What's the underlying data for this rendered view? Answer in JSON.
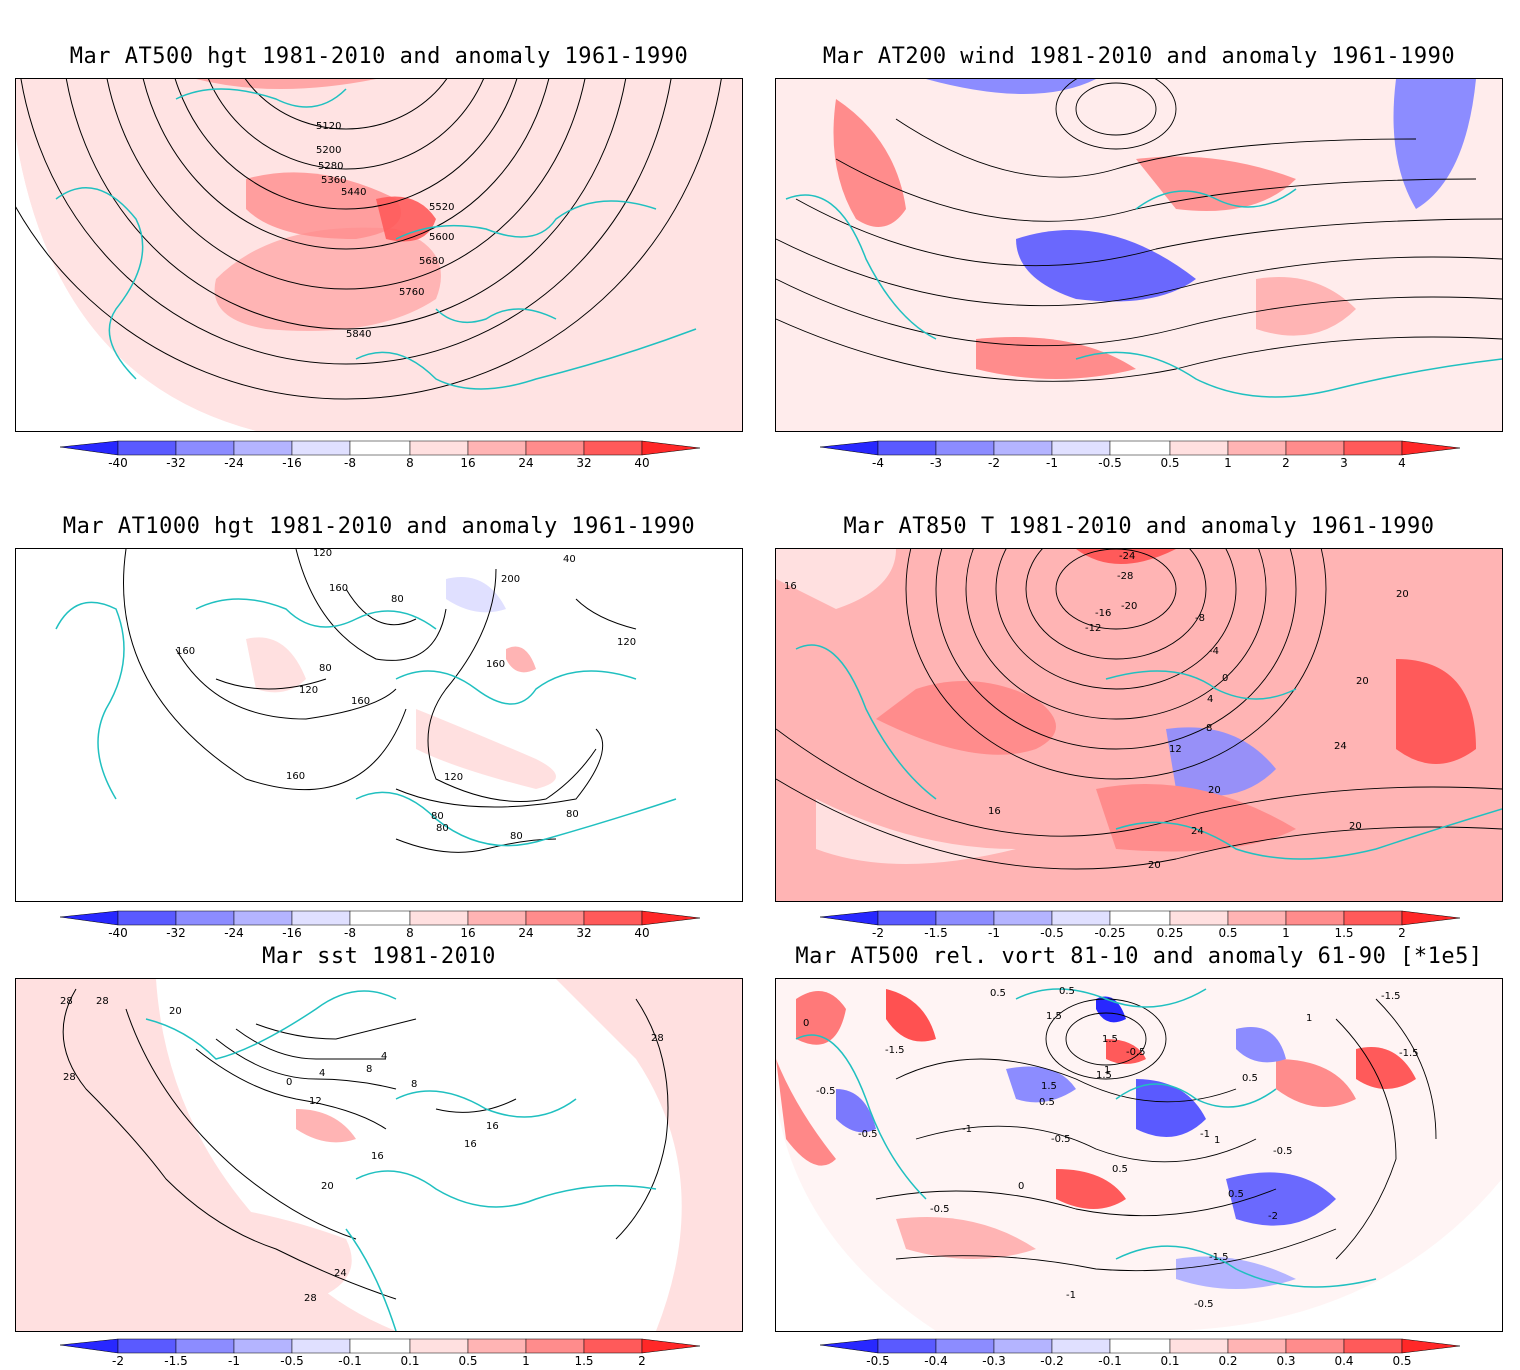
{
  "panels": [
    {
      "id": "p1",
      "title": "Mar AT500 hgt 1981-2010 and anomaly 1961-1990",
      "contour_labels": [
        "5120",
        "5200",
        "5280",
        "5360",
        "5440",
        "5520",
        "5600",
        "5680",
        "5760",
        "5840"
      ],
      "colorbar_ticks": [
        "-40",
        "-32",
        "-24",
        "-16",
        "-8",
        "8",
        "16",
        "24",
        "32",
        "40"
      ]
    },
    {
      "id": "p2",
      "title": "Mar AT200 wind 1981-2010 and anomaly 1961-1990",
      "contour_labels": [],
      "colorbar_ticks": [
        "-4",
        "-3",
        "-2",
        "-1",
        "-0.5",
        "0.5",
        "1",
        "2",
        "3",
        "4"
      ]
    },
    {
      "id": "p3",
      "title": "Mar AT1000 hgt 1981-2010 and anomaly 1961-1990",
      "contour_labels": [
        "120",
        "160",
        "80",
        "40",
        "200",
        "160",
        "120",
        "160",
        "80",
        "120",
        "160",
        "160",
        "120",
        "80",
        "80",
        "80",
        "80"
      ],
      "colorbar_ticks": [
        "-40",
        "-32",
        "-24",
        "-16",
        "-8",
        "8",
        "16",
        "24",
        "32",
        "40"
      ]
    },
    {
      "id": "p4",
      "title": "Mar AT850 T 1981-2010 and anomaly 1961-1990",
      "contour_labels": [
        "-24",
        "-28",
        "-20",
        "-16",
        "-12",
        "-8",
        "-4",
        "0",
        "4",
        "8",
        "12",
        "16",
        "20",
        "24",
        "20",
        "20",
        "20",
        "24",
        "20",
        "16"
      ],
      "colorbar_ticks": [
        "-2",
        "-1.5",
        "-1",
        "-0.5",
        "-0.25",
        "0.25",
        "0.5",
        "1",
        "1.5",
        "2"
      ]
    },
    {
      "id": "p5",
      "title": "Mar sst 1981-2010",
      "contour_labels": [
        "28",
        "28",
        "28",
        "20",
        "0",
        "4",
        "8",
        "12",
        "16",
        "20",
        "24",
        "28",
        "4",
        "8",
        "16",
        "16",
        "28"
      ],
      "colorbar_ticks": [
        "-2",
        "-1.5",
        "-1",
        "-0.5",
        "-0.1",
        "0.1",
        "0.5",
        "1",
        "1.5",
        "2"
      ]
    },
    {
      "id": "p6",
      "title": "Mar AT500 rel. vort 81-10 and anomaly 61-90 [*1e5]",
      "contour_labels": [
        "0",
        "-1.5",
        "-0.5",
        "-0.5",
        "-1",
        "0.5",
        "1.5",
        "0.5",
        "1.5",
        "1",
        "1.5",
        "0.5",
        "-0.5",
        "-0.5",
        "0",
        "0.5",
        "-1",
        "1",
        "0.5",
        "-0.5",
        "1",
        "-2",
        "-1.5",
        "-0.5",
        "-1",
        "-0.5",
        "1.5",
        "-1.5",
        "0.5",
        "-1.5"
      ],
      "colorbar_ticks": [
        "-0.5",
        "-0.4",
        "-0.3",
        "-0.2",
        "-0.1",
        "0.1",
        "0.2",
        "0.3",
        "0.4",
        "0.5"
      ]
    }
  ],
  "colors": {
    "coast": "#20c0c0",
    "contour": "#000000",
    "blue_levels": [
      "#2828ff",
      "#5a5aff",
      "#8c8cff",
      "#b4b4ff",
      "#e0e0ff"
    ],
    "red_levels": [
      "#ffe0e0",
      "#ffb4b4",
      "#ff8c8c",
      "#ff5a5a",
      "#ff2828"
    ],
    "arrow_blue": "#0000ff",
    "arrow_red": "#ff0000"
  }
}
